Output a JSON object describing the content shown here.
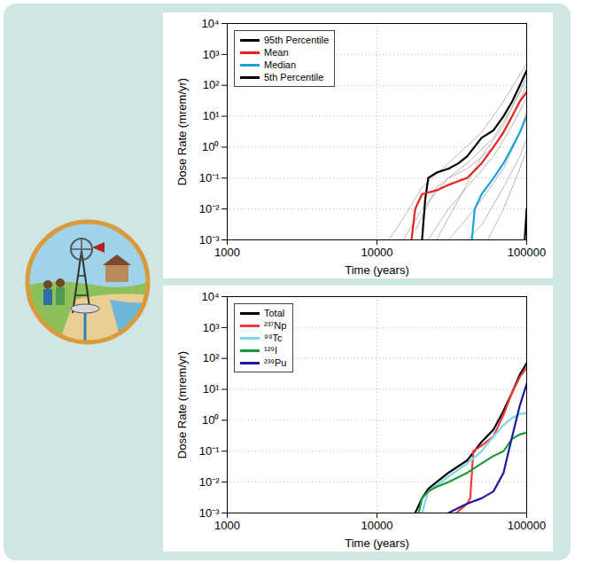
{
  "chart_data": [
    {
      "type": "line",
      "x_label": "Time (years)",
      "y_label": "Dose Rate (mrem/yr)",
      "log": true,
      "grid": true,
      "legend": "upper left",
      "xlim": [
        1000,
        100000
      ],
      "ylim": [
        0.001,
        10000
      ],
      "xticks": [
        1000,
        10000,
        100000
      ],
      "yticks": [
        {
          "value": 0.001,
          "label": "10⁻³"
        },
        {
          "value": 0.01,
          "label": "10⁻²"
        },
        {
          "value": 0.1,
          "label": "10⁻¹"
        },
        {
          "value": 1,
          "label": "10⁰"
        },
        {
          "value": 10,
          "label": "10¹"
        },
        {
          "value": 100,
          "label": "10²"
        },
        {
          "value": 1000,
          "label": "10³"
        },
        {
          "value": 10000,
          "label": "10⁴"
        }
      ],
      "series": [
        {
          "name": "95th Percentile",
          "color": "#000000",
          "x": [
            20000,
            21000,
            22000,
            25000,
            30000,
            35000,
            40000,
            50000,
            60000,
            70000,
            80000,
            90000,
            100000
          ],
          "values": [
            0.001,
            0.02,
            0.1,
            0.15,
            0.2,
            0.3,
            0.5,
            2,
            3.5,
            10,
            30,
            100,
            300
          ]
        },
        {
          "name": "Mean",
          "color": "#e8221c",
          "x": [
            17000,
            18000,
            20000,
            25000,
            30000,
            35000,
            40000,
            50000,
            60000,
            70000,
            80000,
            90000,
            100000
          ],
          "values": [
            0.001,
            0.01,
            0.03,
            0.04,
            0.06,
            0.08,
            0.1,
            0.3,
            1,
            3,
            10,
            30,
            60
          ]
        },
        {
          "name": "Median",
          "color": "#1aa3d9",
          "x": [
            43000,
            45000,
            50000,
            60000,
            70000,
            80000,
            90000,
            100000
          ],
          "values": [
            0.001,
            0.01,
            0.03,
            0.1,
            0.3,
            1,
            3,
            10
          ]
        },
        {
          "name": "5th Percentile",
          "color": "#000000",
          "x": [
            97000,
            100000
          ],
          "values": [
            0.001,
            0.01
          ]
        },
        {
          "color": "#a6a6a6",
          "x": [
            12000,
            15000,
            20000,
            30000,
            50000,
            70000,
            100000
          ],
          "values": [
            0.001,
            0.005,
            0.05,
            0.3,
            3,
            30,
            500
          ]
        },
        {
          "color": "#a6a6a6",
          "x": [
            15000,
            20000,
            30000,
            40000,
            60000,
            80000,
            100000
          ],
          "values": [
            0.001,
            0.01,
            0.1,
            0.2,
            1,
            10,
            100
          ]
        },
        {
          "color": "#a6a6a6",
          "x": [
            22000,
            30000,
            40000,
            60000,
            80000,
            100000
          ],
          "values": [
            0.001,
            0.01,
            0.05,
            0.5,
            5,
            40
          ]
        },
        {
          "color": "#a6a6a6",
          "x": [
            30000,
            40000,
            50000,
            70000,
            90000,
            100000
          ],
          "values": [
            0.001,
            0.005,
            0.02,
            0.2,
            3,
            15
          ]
        },
        {
          "color": "#a6a6a6",
          "x": [
            25000,
            35000,
            50000,
            70000,
            100000
          ],
          "values": [
            0.001,
            0.02,
            0.5,
            5,
            200
          ]
        },
        {
          "color": "#a6a6a6",
          "x": [
            40000,
            50000,
            70000,
            90000,
            100000
          ],
          "values": [
            0.001,
            0.003,
            0.05,
            0.5,
            2
          ]
        },
        {
          "color": "#a6a6a6",
          "x": [
            18000,
            25000,
            40000,
            60000,
            80000,
            100000
          ],
          "values": [
            0.002,
            0.05,
            0.3,
            2,
            20,
            150
          ]
        },
        {
          "color": "#a6a6a6",
          "x": [
            55000,
            70000,
            85000,
            100000
          ],
          "values": [
            0.001,
            0.01,
            0.1,
            0.8
          ]
        }
      ]
    },
    {
      "type": "line",
      "x_label": "Time (years)",
      "y_label": "Dose Rate (mrem/yr)",
      "log": true,
      "grid": true,
      "legend": "upper left",
      "xlim": [
        1000,
        100000
      ],
      "ylim": [
        0.001,
        10000
      ],
      "xticks": [
        1000,
        10000,
        100000
      ],
      "yticks": [
        {
          "value": 0.001,
          "label": "10⁻³"
        },
        {
          "value": 0.01,
          "label": "10⁻²"
        },
        {
          "value": 0.1,
          "label": "10⁻¹"
        },
        {
          "value": 1,
          "label": "10⁰"
        },
        {
          "value": 10,
          "label": "10¹"
        },
        {
          "value": 100,
          "label": "10²"
        },
        {
          "value": 1000,
          "label": "10³"
        },
        {
          "value": 10000,
          "label": "10⁴"
        }
      ],
      "series": [
        {
          "name": "Total",
          "color": "#000000",
          "x": [
            18000,
            20000,
            22000,
            25000,
            30000,
            40000,
            50000,
            60000,
            70000,
            80000,
            90000,
            100000
          ],
          "values": [
            0.001,
            0.003,
            0.006,
            0.01,
            0.02,
            0.05,
            0.2,
            0.5,
            2,
            8,
            30,
            70
          ]
        },
        {
          "name": "²³⁷Np",
          "color": "#f03a3a",
          "x": [
            34000,
            40000,
            42000,
            44000,
            50000,
            60000,
            70000,
            80000,
            90000,
            100000
          ],
          "values": [
            0.001,
            0.002,
            0.003,
            0.1,
            0.15,
            0.3,
            1.5,
            8,
            25,
            50
          ]
        },
        {
          "name": "⁹⁹Tc",
          "color": "#7fd6e6",
          "x": [
            20000,
            22000,
            25000,
            30000,
            40000,
            50000,
            60000,
            70000,
            80000,
            90000,
            100000
          ],
          "values": [
            0.001,
            0.005,
            0.008,
            0.015,
            0.04,
            0.1,
            0.3,
            0.7,
            1.2,
            1.6,
            1.7
          ]
        },
        {
          "name": "¹²⁹I",
          "color": "#1a9a3a",
          "x": [
            19000,
            20000,
            22000,
            25000,
            30000,
            40000,
            50000,
            60000,
            70000,
            80000,
            90000,
            100000
          ],
          "values": [
            0.001,
            0.003,
            0.005,
            0.007,
            0.01,
            0.02,
            0.04,
            0.07,
            0.1,
            0.25,
            0.35,
            0.4
          ]
        },
        {
          "name": "²³⁹Pu",
          "color": "#1c1c9c",
          "x": [
            30000,
            40000,
            50000,
            60000,
            70000,
            80000,
            90000,
            100000
          ],
          "values": [
            0.001,
            0.002,
            0.003,
            0.005,
            0.02,
            0.3,
            3,
            15
          ]
        }
      ]
    }
  ]
}
